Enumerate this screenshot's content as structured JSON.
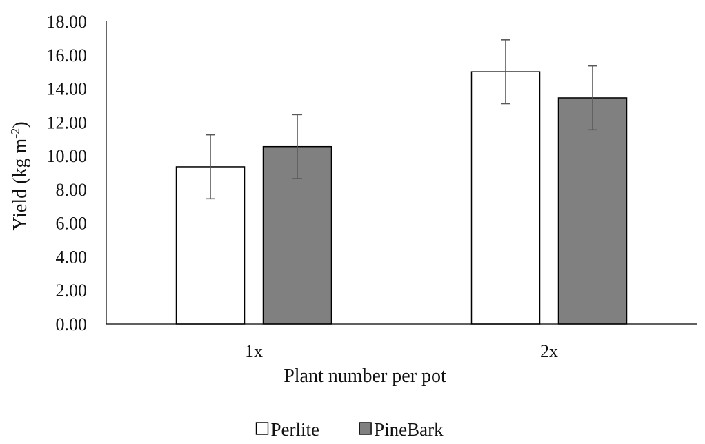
{
  "chart_data": {
    "type": "bar",
    "title": "",
    "xlabel": "Plant number per pot",
    "ylabel": "Yield (kg m",
    "ylabel_superscript": "-2",
    "ylabel_close": ")",
    "categories": [
      "1x",
      "2x"
    ],
    "ylim": [
      0,
      18
    ],
    "ytick_step": 2,
    "ytick_labels": [
      "0.00",
      "2.00",
      "4.00",
      "6.00",
      "8.00",
      "10.00",
      "12.00",
      "14.00",
      "16.00",
      "18.00"
    ],
    "grid": false,
    "legend_position": "bottom-center",
    "series": [
      {
        "name": "Perlite",
        "values": [
          9.35,
          15.0
        ],
        "errors": [
          1.9,
          1.9
        ],
        "fill": "#ffffff",
        "stroke": "#000000"
      },
      {
        "name": "PineBark",
        "values": [
          10.55,
          13.45
        ],
        "errors": [
          1.9,
          1.9
        ],
        "fill": "#808080",
        "stroke": "#000000"
      }
    ],
    "error_bar_color": "#595959"
  }
}
